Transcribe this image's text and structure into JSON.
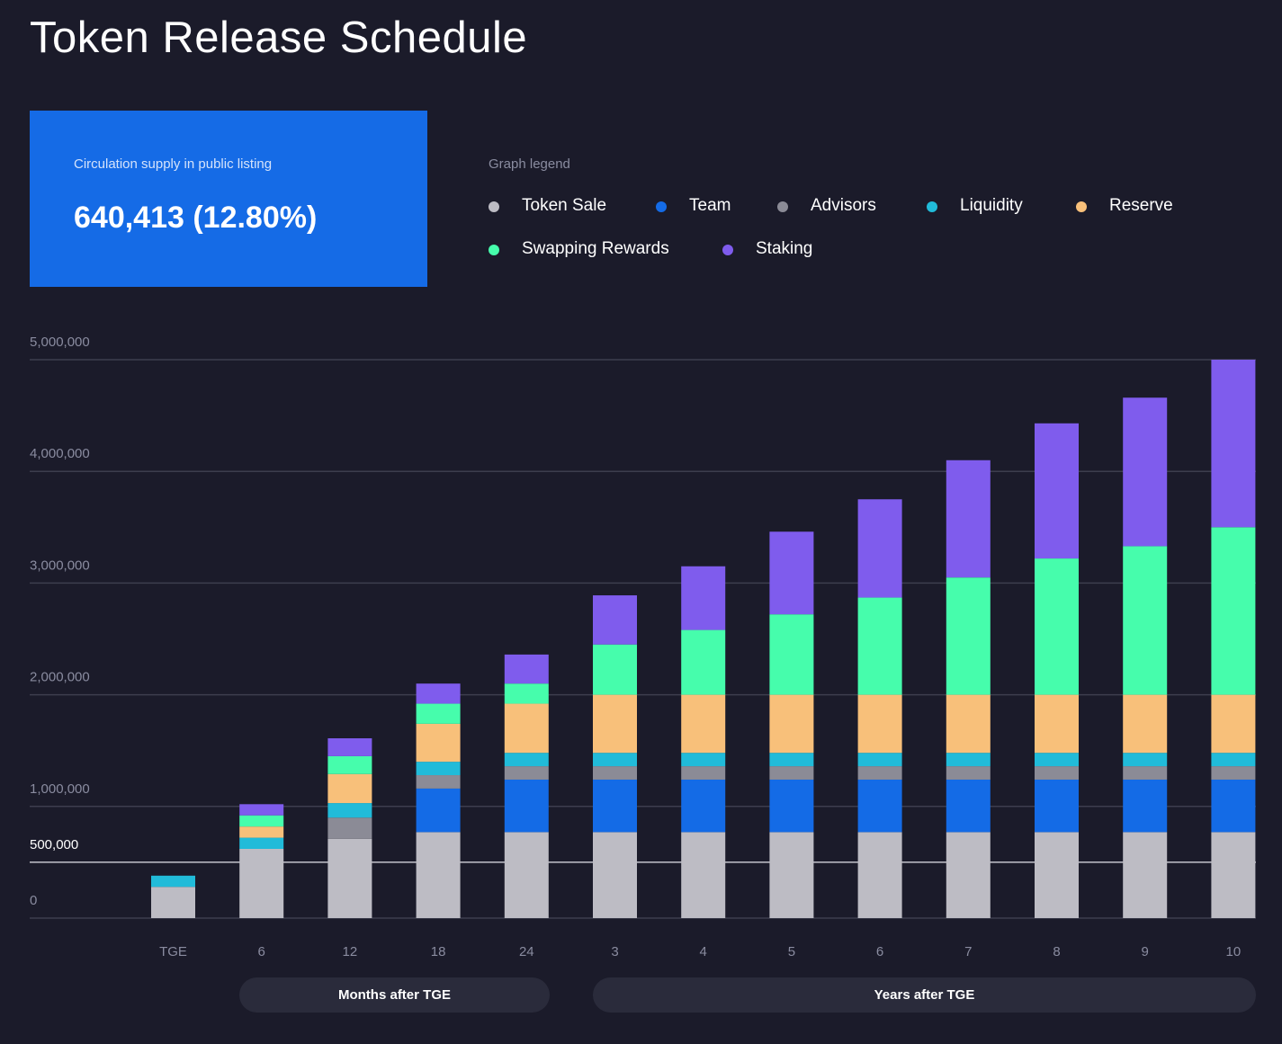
{
  "title": "Token Release Schedule",
  "supply": {
    "label": "Circulation supply in public listing",
    "value": "640,413 (12.80%)"
  },
  "legend": {
    "title": "Graph legend",
    "items": [
      {
        "label": "Token Sale",
        "color": "#bdbcc4"
      },
      {
        "label": "Team",
        "color": "#146be6"
      },
      {
        "label": "Advisors",
        "color": "#8b8b96"
      },
      {
        "label": "Liquidity",
        "color": "#21bbd9"
      },
      {
        "label": "Reserve",
        "color": "#f8c07a"
      },
      {
        "label": "Swapping Rewards",
        "color": "#46fdac"
      },
      {
        "label": "Staking",
        "color": "#7f5ced"
      }
    ]
  },
  "axis_groups": {
    "months_label": "Months after TGE",
    "years_label": "Years after TGE"
  },
  "chart_data": {
    "type": "bar",
    "stacked": true,
    "categories": [
      "TGE",
      "6",
      "12",
      "18",
      "24",
      "3",
      "4",
      "5",
      "6",
      "7",
      "8",
      "9",
      "10"
    ],
    "y_ticks": [
      "0",
      "500,000",
      "1,000,000",
      "2,000,000",
      "3,000,000",
      "4,000,000",
      "5,000,000"
    ],
    "y_tick_values": [
      0,
      500000,
      1000000,
      2000000,
      3000000,
      4000000,
      5000000
    ],
    "highlight_value": 500000,
    "ylim": [
      0,
      5000000
    ],
    "grid": true,
    "series": [
      {
        "name": "Token Sale",
        "color": "#bdbcc4",
        "values": [
          280000,
          620000,
          710000,
          770000,
          770000,
          770000,
          770000,
          770000,
          770000,
          770000,
          770000,
          770000,
          770000
        ]
      },
      {
        "name": "Team",
        "color": "#146be6",
        "values": [
          0,
          0,
          0,
          390000,
          470000,
          470000,
          470000,
          470000,
          470000,
          470000,
          470000,
          470000,
          470000
        ]
      },
      {
        "name": "Advisors",
        "color": "#8b8b96",
        "values": [
          0,
          0,
          190000,
          120000,
          120000,
          120000,
          120000,
          120000,
          120000,
          120000,
          120000,
          120000,
          120000
        ]
      },
      {
        "name": "Liquidity",
        "color": "#21bbd9",
        "values": [
          100000,
          100000,
          130000,
          120000,
          120000,
          120000,
          120000,
          120000,
          120000,
          120000,
          120000,
          120000,
          120000
        ]
      },
      {
        "name": "Reserve",
        "color": "#f8c07a",
        "values": [
          0,
          100000,
          260000,
          340000,
          440000,
          520000,
          520000,
          520000,
          520000,
          520000,
          520000,
          520000,
          520000
        ]
      },
      {
        "name": "Swapping Rewards",
        "color": "#46fdac",
        "values": [
          0,
          100000,
          160000,
          180000,
          180000,
          450000,
          580000,
          720000,
          870000,
          1050000,
          1220000,
          1330000,
          1500000
        ]
      },
      {
        "name": "Staking",
        "color": "#7f5ced",
        "values": [
          0,
          100000,
          160000,
          180000,
          260000,
          440000,
          570000,
          740000,
          880000,
          1050000,
          1210000,
          1330000,
          1500000
        ]
      }
    ]
  }
}
